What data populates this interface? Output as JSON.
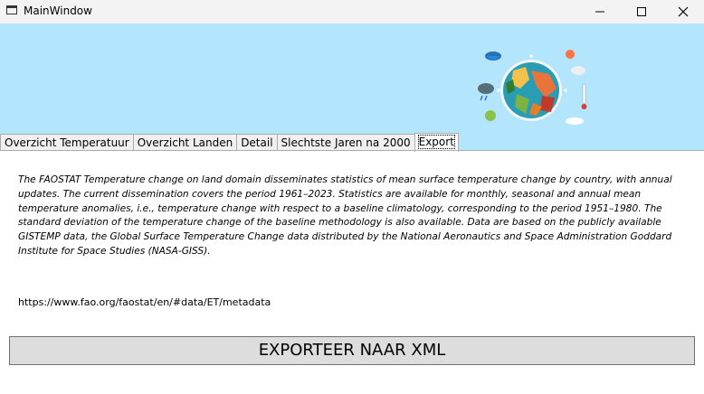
{
  "window": {
    "title": "MainWindow"
  },
  "tabs": [
    {
      "label": "Overzicht Temperatuur"
    },
    {
      "label": "Overzicht Landen"
    },
    {
      "label": "Detail"
    },
    {
      "label": "Slechtste Jaren na 2000"
    },
    {
      "label": "Export"
    }
  ],
  "active_tab": "Export",
  "export": {
    "description": "The FAOSTAT Temperature change on land domain disseminates statistics of mean surface temperature change by country, with annual updates. The current dissemination covers the period 1961–2023. Statistics are available for monthly, seasonal and annual mean temperature anomalies, i.e., temperature change with respect to a baseline climatology, corresponding to the period 1951–1980. The standard deviation of the temperature change of the baseline methodology is also available. Data are based on the publicly available GISTEMP data, the Global Surface Temperature Change data distributed by the National Aeronautics and Space Administration Goddard Institute for Space Studies (NASA-GISS).",
    "url": "https://www.fao.org/faostat/en/#data/ET/metadata",
    "button_label": "EXPORTEER NAAR XML"
  },
  "colors": {
    "header_background": "#b3e5fc",
    "button_background": "#dddddd"
  },
  "icons": [
    "app-window-icon",
    "minimize-icon",
    "maximize-icon",
    "close-icon",
    "earth-climate-illustration"
  ]
}
